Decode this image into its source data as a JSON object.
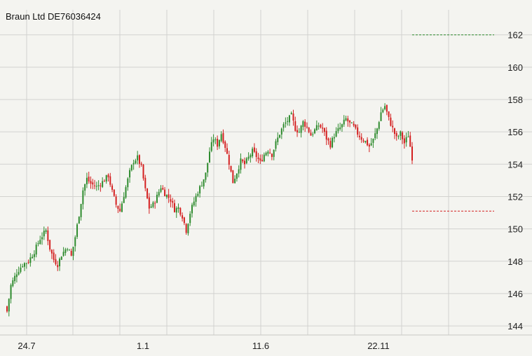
{
  "chart_data": {
    "type": "candlestick",
    "title": "Braun Ltd DE76036424",
    "x_ticks": [
      "24.7",
      "1.1",
      "11.6",
      "22.11"
    ],
    "y_ticks": [
      144,
      146,
      148,
      150,
      152,
      154,
      156,
      158,
      160,
      162
    ],
    "ylim": [
      143.7,
      163.2
    ],
    "grid": true,
    "reference_lines": [
      {
        "value": 162.0,
        "color": "#2e8b2e",
        "style": "dashed"
      },
      {
        "value": 151.1,
        "color": "#d42020",
        "style": "dashed"
      }
    ],
    "colors": {
      "up": "#2e8b2e",
      "down": "#d42020",
      "background": "#f4f4f0"
    },
    "close_path": [
      [
        0,
        144.9
      ],
      [
        2,
        146.5
      ],
      [
        5,
        147.3
      ],
      [
        8,
        147.8
      ],
      [
        11,
        148.0
      ],
      [
        14,
        148.6
      ],
      [
        17,
        149.4
      ],
      [
        20,
        149.9
      ],
      [
        22,
        148.8
      ],
      [
        24,
        148.1
      ],
      [
        26,
        147.8
      ],
      [
        28,
        148.4
      ],
      [
        31,
        148.9
      ],
      [
        33,
        148.3
      ],
      [
        35,
        149.5
      ],
      [
        37,
        150.9
      ],
      [
        39,
        152.4
      ],
      [
        41,
        153.1
      ],
      [
        43,
        152.8
      ],
      [
        46,
        152.6
      ],
      [
        49,
        152.9
      ],
      [
        52,
        153.3
      ],
      [
        54,
        152.3
      ],
      [
        56,
        151.5
      ],
      [
        58,
        151.1
      ],
      [
        60,
        152.1
      ],
      [
        63,
        153.5
      ],
      [
        65,
        154.2
      ],
      [
        67,
        154.4
      ],
      [
        69,
        153.8
      ],
      [
        71,
        152.4
      ],
      [
        73,
        151.3
      ],
      [
        75,
        151.5
      ],
      [
        77,
        152.0
      ],
      [
        79,
        152.6
      ],
      [
        81,
        152.2
      ],
      [
        84,
        151.8
      ],
      [
        86,
        151.2
      ],
      [
        88,
        151.3
      ],
      [
        90,
        150.8
      ],
      [
        92,
        149.9
      ],
      [
        94,
        151.0
      ],
      [
        96,
        151.7
      ],
      [
        98,
        152.3
      ],
      [
        100,
        152.8
      ],
      [
        102,
        153.4
      ],
      [
        104,
        154.8
      ],
      [
        106,
        155.6
      ],
      [
        108,
        155.2
      ],
      [
        110,
        155.9
      ],
      [
        112,
        155.1
      ],
      [
        114,
        154.1
      ],
      [
        116,
        152.9
      ],
      [
        118,
        153.5
      ],
      [
        120,
        154.2
      ],
      [
        122,
        154.0
      ],
      [
        124,
        154.4
      ],
      [
        126,
        154.8
      ],
      [
        128,
        154.5
      ],
      [
        130,
        154.1
      ],
      [
        132,
        154.6
      ],
      [
        134,
        154.9
      ],
      [
        136,
        154.6
      ],
      [
        138,
        155.3
      ],
      [
        140,
        155.9
      ],
      [
        142,
        156.4
      ],
      [
        144,
        156.7
      ],
      [
        146,
        157.0
      ],
      [
        148,
        156.2
      ],
      [
        150,
        156.0
      ],
      [
        152,
        156.6
      ],
      [
        154,
        156.3
      ],
      [
        156,
        155.8
      ],
      [
        158,
        156.1
      ],
      [
        160,
        156.4
      ],
      [
        162,
        156.2
      ],
      [
        164,
        155.6
      ],
      [
        166,
        155.2
      ],
      [
        168,
        155.8
      ],
      [
        170,
        156.1
      ],
      [
        172,
        156.4
      ],
      [
        174,
        156.8
      ],
      [
        176,
        156.5
      ],
      [
        178,
        156.3
      ],
      [
        180,
        155.9
      ],
      [
        182,
        155.6
      ],
      [
        184,
        155.4
      ],
      [
        186,
        155.1
      ],
      [
        188,
        155.5
      ],
      [
        190,
        156.2
      ],
      [
        192,
        157.2
      ],
      [
        194,
        157.6
      ],
      [
        196,
        156.8
      ],
      [
        198,
        156.2
      ],
      [
        200,
        155.6
      ],
      [
        202,
        155.9
      ],
      [
        204,
        155.3
      ],
      [
        206,
        155.8
      ],
      [
        208,
        154.4
      ]
    ],
    "n_points": 209
  }
}
